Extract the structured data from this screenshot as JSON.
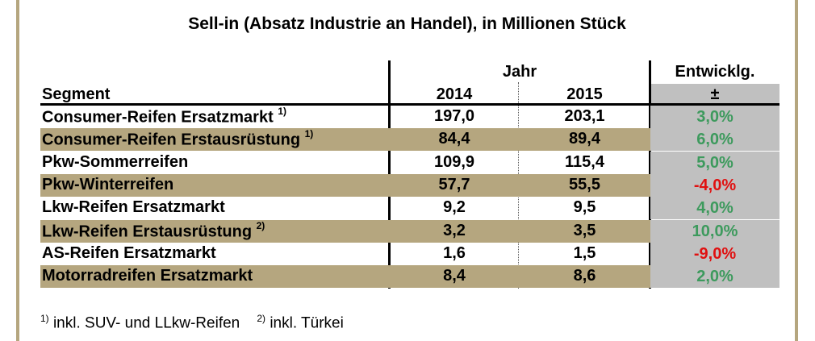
{
  "title": "Sell-in (Absatz Industrie an Handel), in Millionen Stück",
  "header": {
    "group_year": "Jahr",
    "group_change": "Entwicklg.",
    "segment": "Segment",
    "year1": "2014",
    "year2": "2015",
    "change_symbol": "±"
  },
  "rows": [
    {
      "segment": "Consumer-Reifen Ersatzmarkt",
      "note": "1)",
      "v2014": "197,0",
      "v2015": "203,1",
      "change": "3,0%",
      "trend": "positive",
      "band": "white"
    },
    {
      "segment": "Consumer-Reifen Erstausrüstung",
      "note": "1)",
      "v2014": "84,4",
      "v2015": "89,4",
      "change": "6,0%",
      "trend": "positive",
      "band": "tan"
    },
    {
      "segment": "Pkw-Sommerreifen",
      "note": "",
      "v2014": "109,9",
      "v2015": "115,4",
      "change": "5,0%",
      "trend": "positive",
      "band": "white"
    },
    {
      "segment": "Pkw-Winterreifen",
      "note": "",
      "v2014": "57,7",
      "v2015": "55,5",
      "change": "-4,0%",
      "trend": "negative",
      "band": "tan"
    },
    {
      "segment": "Lkw-Reifen Ersatzmarkt",
      "note": "",
      "v2014": "9,2",
      "v2015": "9,5",
      "change": "4,0%",
      "trend": "positive",
      "band": "white"
    },
    {
      "segment": "Lkw-Reifen Erstausrüstung",
      "note": "2)",
      "v2014": "3,2",
      "v2015": "3,5",
      "change": "10,0%",
      "trend": "positive",
      "band": "tan"
    },
    {
      "segment": "AS-Reifen Ersatzmarkt",
      "note": "",
      "v2014": "1,6",
      "v2015": "1,5",
      "change": "-9,0%",
      "trend": "negative",
      "band": "white"
    },
    {
      "segment": "Motorradreifen Ersatzmarkt",
      "note": "",
      "v2014": "8,4",
      "v2015": "8,6",
      "change": "2,0%",
      "trend": "positive",
      "band": "tan"
    }
  ],
  "footnotes": {
    "note1_mark": "1)",
    "note1_text": "inkl. SUV- und LLkw-Reifen",
    "note2_mark": "2)",
    "note2_text": "inkl. Türkei"
  },
  "colors": {
    "band_tan": "#b5a67f",
    "change_column_gray": "#c0c0c0",
    "positive": "#3d9a5d",
    "negative": "#e01010"
  }
}
